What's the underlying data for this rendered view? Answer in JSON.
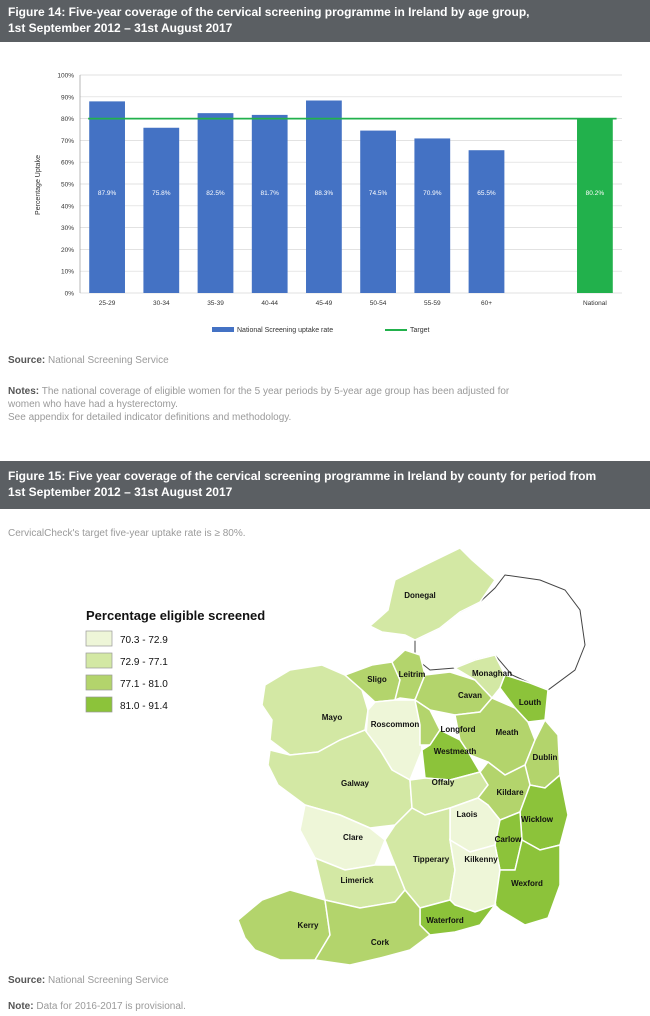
{
  "figure14": {
    "title_line1": "Figure 14: Five-year coverage of the cervical screening programme in Ireland by age group,",
    "title_line2": "1st September 2012 – 31st August 2017",
    "source_label": "Source:",
    "source_text": "National Screening Service",
    "notes_label": "Notes:",
    "notes_line1": "The national coverage of eligible women for the 5 year periods by 5-year age group has been adjusted for",
    "notes_line2": "women who have had a hysterectomy.",
    "notes_line3": "See appendix for detailed indicator definitions and methodology."
  },
  "chart_data": {
    "type": "bar",
    "categories": [
      "25-29",
      "30-34",
      "35-39",
      "40-44",
      "45-49",
      "50-54",
      "55-59",
      "60+",
      "National"
    ],
    "values": [
      87.9,
      75.8,
      82.5,
      81.7,
      88.3,
      74.5,
      70.9,
      65.5,
      80.2
    ],
    "value_labels": [
      "87.9%",
      "75.8%",
      "82.5%",
      "81.7%",
      "88.3%",
      "74.5%",
      "70.9%",
      "65.5%",
      "80.2%"
    ],
    "target": 80,
    "ylabel": "Percentage Uptake",
    "ylim": [
      0,
      100
    ],
    "yticks": [
      "0%",
      "10%",
      "20%",
      "30%",
      "40%",
      "50%",
      "60%",
      "70%",
      "80%",
      "90%",
      "100%"
    ],
    "legend": [
      "National Screening uptake rate",
      "Target"
    ],
    "legend_position": "bottom",
    "grid": true,
    "colors": {
      "bar": "#4472c4",
      "national": "#22b14c",
      "target": "#22b14c"
    }
  },
  "figure15": {
    "title_line1": "Figure 15: Five year coverage of the cervical screening programme in Ireland by county for period from",
    "title_line2": "1st September 2012 – 31st August 2017",
    "intro": "CervicalCheck's target five-year uptake rate is ≥ 80%.",
    "legend_title": "Percentage eligible screened",
    "legend_items": [
      {
        "label": "70.3 - 72.9",
        "color": "#eef6d8"
      },
      {
        "label": "72.9 - 77.1",
        "color": "#d3e8a4"
      },
      {
        "label": "77.1 - 81.0",
        "color": "#b3d46c"
      },
      {
        "label": "81.0 - 91.4",
        "color": "#8cc33a"
      }
    ],
    "counties": [
      "Donegal",
      "Sligo",
      "Leitrim",
      "Monaghan",
      "Cavan",
      "Louth",
      "Mayo",
      "Roscommon",
      "Longford",
      "Meath",
      "Westmeath",
      "Dublin",
      "Galway",
      "Offaly",
      "Kildare",
      "Laois",
      "Wicklow",
      "Clare",
      "Carlow",
      "Tipperary",
      "Kilkenny",
      "Limerick",
      "Wexford",
      "Kerry",
      "Waterford",
      "Cork"
    ],
    "source_label": "Source:",
    "source_text": "National Screening Service",
    "note_label": "Note:",
    "note_text": "Data for 2016-2017 is provisional."
  }
}
